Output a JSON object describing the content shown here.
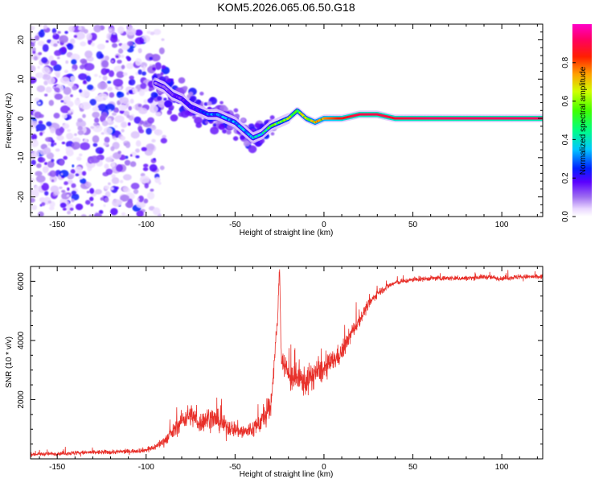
{
  "title": "KOM5.2026.065.06.50.G18",
  "chart_data": [
    {
      "type": "heatmap",
      "title": "KOM5.2026.065.06.50.G18",
      "xlabel": "Height of straight line (km)",
      "ylabel": "Frequency (Hz)",
      "xlim": [
        -165,
        123
      ],
      "ylim": [
        -25,
        24
      ],
      "xticks": [
        -150,
        -100,
        -50,
        0,
        50,
        100
      ],
      "xticklabels": [
        "-150",
        "-100",
        "-50",
        "0",
        "50",
        "100"
      ],
      "yticks": [
        -20,
        -10,
        0,
        10,
        20
      ],
      "yticklabels": [
        "-20",
        "-10",
        "0",
        "10",
        "20"
      ],
      "colorbar": {
        "label": "Normalized spectral amplitude",
        "range": [
          0,
          1
        ],
        "ticks": [
          0.0,
          0.2,
          0.4,
          0.6,
          0.8
        ],
        "ticklabels": [
          "0.0",
          "0.2",
          "0.4",
          "0.6",
          "0.8"
        ],
        "colormap": "rainbow (white-lavender-violet-blue-cyan-green-yellow-red-magenta)"
      },
      "ridge": {
        "description": "Dominant frequency ridge vs height; noise for heights below about -95 km",
        "x": [
          -95,
          -90,
          -85,
          -80,
          -75,
          -70,
          -65,
          -60,
          -55,
          -50,
          -45,
          -40,
          -35,
          -30,
          -25,
          -20,
          -15,
          -10,
          -5,
          0,
          10,
          20,
          30,
          40,
          50,
          60,
          80,
          100,
          123
        ],
        "y": [
          9,
          8,
          6,
          5,
          3,
          2,
          1,
          1,
          0,
          -1,
          -3,
          -5,
          -4,
          -2,
          -1,
          0,
          2,
          0,
          -1,
          0,
          0,
          1,
          1,
          0,
          0,
          0,
          0,
          0,
          0
        ],
        "amplitude": [
          0.1,
          0.12,
          0.15,
          0.18,
          0.2,
          0.22,
          0.28,
          0.3,
          0.3,
          0.32,
          0.34,
          0.36,
          0.4,
          0.5,
          0.55,
          0.6,
          0.6,
          0.65,
          0.7,
          0.75,
          0.85,
          0.9,
          0.9,
          0.88,
          0.9,
          0.92,
          0.92,
          0.92,
          0.92
        ]
      }
    },
    {
      "type": "line",
      "xlabel": "Height of straight line (km)",
      "ylabel": "SNR (10 * v/v)",
      "xlim": [
        -165,
        123
      ],
      "ylim": [
        0,
        6500
      ],
      "xticks": [
        -150,
        -100,
        -50,
        0,
        50,
        100
      ],
      "xticklabels": [
        "-150",
        "-100",
        "-50",
        "0",
        "50",
        "100"
      ],
      "yticks": [
        2000,
        4000,
        6000
      ],
      "yticklabels": [
        "2000",
        "4000",
        "6000"
      ],
      "series": [
        {
          "name": "SNR",
          "color": "#e8302a",
          "x": [
            -165,
            -150,
            -140,
            -130,
            -120,
            -110,
            -100,
            -95,
            -90,
            -85,
            -80,
            -75,
            -70,
            -65,
            -60,
            -55,
            -50,
            -45,
            -40,
            -35,
            -30,
            -26,
            -25,
            -24,
            -20,
            -15,
            -10,
            -5,
            0,
            5,
            10,
            15,
            20,
            25,
            30,
            35,
            40,
            45,
            50,
            60,
            70,
            80,
            90,
            100,
            110,
            123
          ],
          "y": [
            150,
            180,
            200,
            220,
            230,
            250,
            300,
            400,
            600,
            900,
            1300,
            1500,
            1200,
            1400,
            1300,
            1100,
            1000,
            900,
            1000,
            1300,
            1700,
            4800,
            6500,
            3500,
            2800,
            2700,
            2600,
            2900,
            3000,
            3300,
            3600,
            4200,
            4700,
            5200,
            5600,
            5800,
            5950,
            6000,
            6050,
            6100,
            6100,
            6100,
            6150,
            6100,
            6150,
            6150
          ],
          "noise": [
            120,
            120,
            130,
            130,
            140,
            140,
            150,
            200,
            300,
            450,
            600,
            700,
            600,
            700,
            650,
            550,
            500,
            500,
            550,
            700,
            800,
            400,
            300,
            800,
            900,
            900,
            900,
            800,
            700,
            650,
            600,
            500,
            400,
            300,
            250,
            200,
            150,
            150,
            150,
            150,
            150,
            150,
            150,
            150,
            150,
            150
          ]
        }
      ]
    }
  ]
}
